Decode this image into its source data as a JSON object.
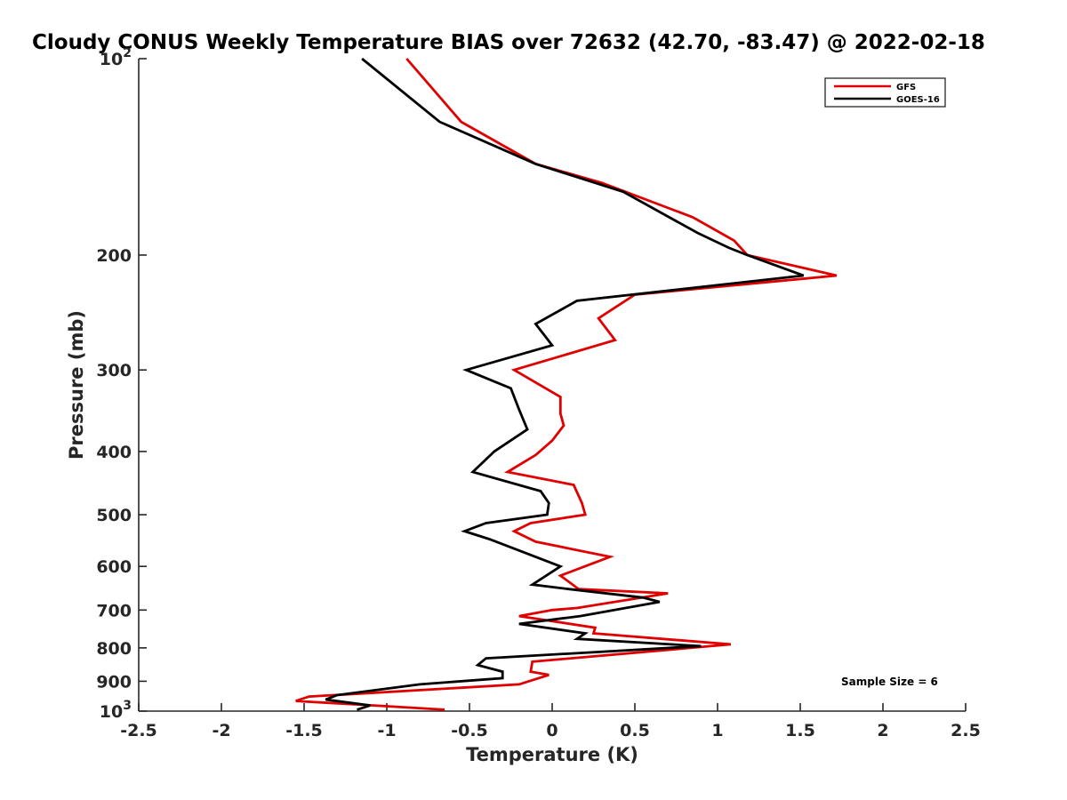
{
  "chart_data": {
    "type": "line",
    "title": "Cloudy CONUS Weekly Temperature BIAS over 72632 (42.70, -83.47) @ 2022-02-18",
    "xlabel": "Temperature (K)",
    "ylabel": "Pressure (mb)",
    "xlim": [
      -2.5,
      2.5
    ],
    "ylim": [
      100,
      1000
    ],
    "yscale": "log",
    "y_reversed": true,
    "grid": false,
    "legend_position": "top-right",
    "annotation": "Sample Size = 6",
    "x_ticks": [
      "-2.5",
      "-2",
      "-1.5",
      "-1",
      "-0.5",
      "0",
      "0.5",
      "1",
      "1.5",
      "2",
      "2.5"
    ],
    "y_ticks": [
      {
        "value": 100,
        "label": "10",
        "sup": "2"
      },
      {
        "value": 200,
        "label": "200",
        "sup": ""
      },
      {
        "value": 300,
        "label": "300",
        "sup": ""
      },
      {
        "value": 400,
        "label": "400",
        "sup": ""
      },
      {
        "value": 500,
        "label": "500",
        "sup": ""
      },
      {
        "value": 600,
        "label": "600",
        "sup": ""
      },
      {
        "value": 700,
        "label": "700",
        "sup": ""
      },
      {
        "value": 800,
        "label": "800",
        "sup": ""
      },
      {
        "value": 900,
        "label": "900",
        "sup": ""
      },
      {
        "value": 1000,
        "label": "10",
        "sup": "3"
      }
    ],
    "series": [
      {
        "name": "GFS",
        "color": "#e00000",
        "points": [
          [
            -0.88,
            100
          ],
          [
            -0.55,
            125
          ],
          [
            -0.1,
            145
          ],
          [
            0.3,
            155
          ],
          [
            0.85,
            175
          ],
          [
            1.1,
            190
          ],
          [
            1.18,
            200
          ],
          [
            1.72,
            215
          ],
          [
            0.5,
            230
          ],
          [
            0.28,
            250
          ],
          [
            0.38,
            270
          ],
          [
            -0.23,
            300
          ],
          [
            0.05,
            330
          ],
          [
            0.05,
            350
          ],
          [
            0.07,
            365
          ],
          [
            0.0,
            385
          ],
          [
            -0.1,
            405
          ],
          [
            -0.27,
            430
          ],
          [
            0.13,
            450
          ],
          [
            0.18,
            480
          ],
          [
            0.2,
            500
          ],
          [
            -0.13,
            515
          ],
          [
            -0.23,
            530
          ],
          [
            -0.1,
            550
          ],
          [
            0.35,
            580
          ],
          [
            0.05,
            620
          ],
          [
            0.16,
            650
          ],
          [
            0.7,
            660
          ],
          [
            0.15,
            695
          ],
          [
            0.0,
            700
          ],
          [
            -0.2,
            715
          ],
          [
            0.26,
            745
          ],
          [
            0.25,
            760
          ],
          [
            1.08,
            790
          ],
          [
            -0.12,
            840
          ],
          [
            -0.13,
            870
          ],
          [
            -0.02,
            880
          ],
          [
            -0.2,
            910
          ],
          [
            -1.47,
            950
          ],
          [
            -1.55,
            965
          ],
          [
            -1.08,
            980
          ],
          [
            -0.65,
            995
          ]
        ]
      },
      {
        "name": "GOES-16",
        "color": "#000000",
        "points": [
          [
            -1.15,
            100
          ],
          [
            -0.68,
            125
          ],
          [
            -0.1,
            145
          ],
          [
            0.43,
            160
          ],
          [
            0.88,
            185
          ],
          [
            1.07,
            195
          ],
          [
            1.18,
            200
          ],
          [
            1.52,
            215
          ],
          [
            0.15,
            235
          ],
          [
            -0.1,
            255
          ],
          [
            0.0,
            275
          ],
          [
            -0.52,
            300
          ],
          [
            -0.25,
            320
          ],
          [
            -0.2,
            345
          ],
          [
            -0.15,
            370
          ],
          [
            -0.35,
            400
          ],
          [
            -0.48,
            430
          ],
          [
            -0.07,
            460
          ],
          [
            -0.02,
            480
          ],
          [
            -0.03,
            500
          ],
          [
            -0.4,
            515
          ],
          [
            -0.53,
            530
          ],
          [
            -0.38,
            545
          ],
          [
            0.05,
            600
          ],
          [
            -0.12,
            640
          ],
          [
            0.1,
            650
          ],
          [
            0.55,
            670
          ],
          [
            0.65,
            680
          ],
          [
            0.17,
            715
          ],
          [
            -0.2,
            735
          ],
          [
            0.2,
            760
          ],
          [
            0.15,
            775
          ],
          [
            0.9,
            795
          ],
          [
            -0.4,
            830
          ],
          [
            -0.45,
            850
          ],
          [
            -0.3,
            870
          ],
          [
            -0.3,
            890
          ],
          [
            -0.8,
            910
          ],
          [
            -1.3,
            945
          ],
          [
            -1.37,
            960
          ],
          [
            -1.1,
            980
          ],
          [
            -1.18,
            995
          ]
        ]
      }
    ]
  }
}
